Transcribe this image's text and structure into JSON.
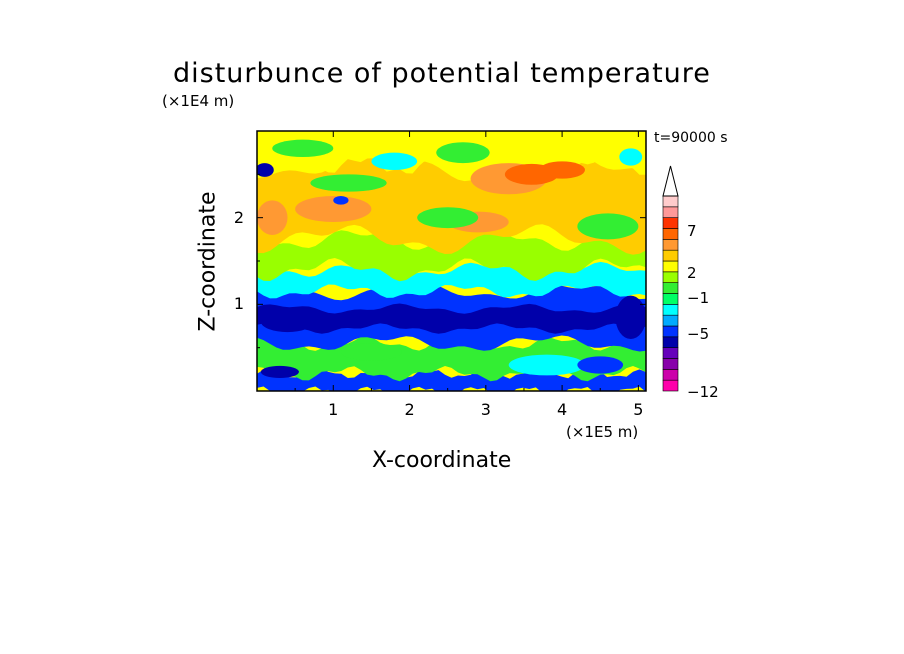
{
  "chart_data": {
    "type": "heatmap",
    "title": "disturbunce of potential temperature",
    "xlabel": "X-coordinate",
    "ylabel": "Z-coordinate",
    "x_multiplier": "(×1E5 m)",
    "y_multiplier": "(×1E4 m)",
    "time_label": "t=90000 s",
    "xlim": [
      0,
      5.1
    ],
    "ylim": [
      0,
      3.0
    ],
    "x_ticks": [
      "1",
      "2",
      "3",
      "4",
      "5"
    ],
    "y_ticks": [
      "1",
      "2"
    ],
    "colorbar": {
      "levels": [
        -12,
        -11,
        -10,
        -9,
        -8,
        -7,
        -6,
        -5,
        -4,
        -3,
        -2,
        -1,
        0,
        1,
        2,
        3,
        4,
        5,
        6,
        7,
        8,
        9
      ],
      "colors": [
        "#ff00aa",
        "#cc00aa",
        "#8800aa",
        "#6600bb",
        "#0000aa",
        "#0033ff",
        "#00aaff",
        "#00ffff",
        "#00ff66",
        "#33ee33",
        "#99ff00",
        "#ffff00",
        "#ffcc00",
        "#ff9933",
        "#ff6600",
        "#ff3300",
        "#ff9999",
        "#ffcccc"
      ],
      "tick_labels": [
        "7",
        "2",
        "−1",
        "−5",
        "−12"
      ],
      "extend": "max"
    },
    "layers": [
      {
        "z_range": [
          0.0,
          0.2
        ],
        "description_value": -5,
        "color": "#0033ff"
      },
      {
        "z_range": [
          0.2,
          0.55
        ],
        "description_value": 1,
        "color": "#33ee33"
      },
      {
        "z_range": [
          0.55,
          1.15
        ],
        "description_value": -5,
        "color": "#0033ff"
      },
      {
        "z_range": [
          1.15,
          1.4
        ],
        "description_value": -1,
        "color": "#00ffff"
      },
      {
        "z_range": [
          1.4,
          1.75
        ],
        "description_value": 0,
        "color": "#99ff00"
      },
      {
        "z_range": [
          1.75,
          2.6
        ],
        "description_value": 2,
        "color": "#ffcc00"
      },
      {
        "z_range": [
          2.6,
          3.0
        ],
        "description_value": 1,
        "color": "#ffff00"
      }
    ]
  }
}
